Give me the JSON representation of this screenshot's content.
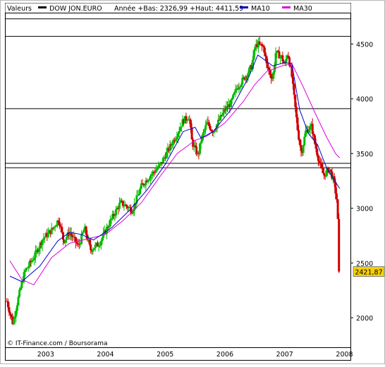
{
  "header": {
    "valeurs_label": "Valeurs",
    "series_label": "DOW JON.EURO",
    "stats_label": "Année +Bas: 2326,99 +Haut: 4411,59",
    "ma10_label": "MA10",
    "ma30_label": "MA30"
  },
  "footer": {
    "credit": "© IT-Finance.com / Boursorama"
  },
  "colors": {
    "up": "#00bb00",
    "down": "#cc0000",
    "ma10": "#0000cc",
    "ma30": "#e000e0",
    "grid": "#000000",
    "last_price_bg": "#f7d000"
  },
  "chart_data": {
    "type": "candlestick",
    "series_name": "DOW JON.EURO",
    "x_ticks": [
      "2003",
      "2004",
      "2005",
      "2006",
      "2007",
      "2008"
    ],
    "y_ticks": [
      "2000",
      "2500",
      "3000",
      "3500",
      "4000",
      "4500"
    ],
    "y_tick_values": [
      2000,
      2500,
      3000,
      3500,
      4000,
      4500
    ],
    "ylim": [
      1730,
      4780
    ],
    "xlim": [
      2002.83,
      2008.6
    ],
    "last_price": {
      "value": 2421.87,
      "label": "2421,87"
    },
    "horizontal_lines": [
      4570,
      3910,
      3410,
      3370,
      4730
    ],
    "anchors": [
      [
        2002.85,
        2150
      ],
      [
        2002.95,
        1950
      ],
      [
        2003.05,
        2200
      ],
      [
        2003.15,
        2420
      ],
      [
        2003.3,
        2550
      ],
      [
        2003.45,
        2720
      ],
      [
        2003.6,
        2800
      ],
      [
        2003.72,
        2900
      ],
      [
        2003.8,
        2700
      ],
      [
        2003.9,
        2780
      ],
      [
        2004.05,
        2650
      ],
      [
        2004.15,
        2820
      ],
      [
        2004.25,
        2620
      ],
      [
        2004.4,
        2680
      ],
      [
        2004.6,
        2900
      ],
      [
        2004.75,
        3050
      ],
      [
        2004.85,
        3020
      ],
      [
        2004.95,
        2980
      ],
      [
        2005.1,
        3200
      ],
      [
        2005.25,
        3300
      ],
      [
        2005.4,
        3380
      ],
      [
        2005.55,
        3530
      ],
      [
        2005.7,
        3680
      ],
      [
        2005.8,
        3800
      ],
      [
        2005.9,
        3840
      ],
      [
        2005.95,
        3600
      ],
      [
        2006.05,
        3480
      ],
      [
        2006.1,
        3620
      ],
      [
        2006.2,
        3780
      ],
      [
        2006.3,
        3700
      ],
      [
        2006.4,
        3800
      ],
      [
        2006.5,
        3900
      ],
      [
        2006.6,
        3960
      ],
      [
        2006.7,
        4100
      ],
      [
        2006.85,
        4210
      ],
      [
        2006.95,
        4300
      ],
      [
        2007.0,
        4470
      ],
      [
        2007.05,
        4500
      ],
      [
        2007.15,
        4470
      ],
      [
        2007.2,
        4300
      ],
      [
        2007.3,
        4180
      ],
      [
        2007.35,
        4420
      ],
      [
        2007.45,
        4380
      ],
      [
        2007.5,
        4300
      ],
      [
        2007.55,
        4430
      ],
      [
        2007.62,
        4200
      ],
      [
        2007.72,
        3700
      ],
      [
        2007.78,
        3500
      ],
      [
        2007.85,
        3700
      ],
      [
        2007.95,
        3750
      ],
      [
        2008.0,
        3600
      ],
      [
        2008.08,
        3420
      ],
      [
        2008.15,
        3300
      ],
      [
        2008.25,
        3360
      ],
      [
        2008.32,
        3250
      ],
      [
        2008.38,
        3050
      ],
      [
        2008.4,
        2650
      ],
      [
        2008.42,
        2421.87
      ]
    ],
    "anchor_note_removed": true,
    "ma10": [
      [
        2002.9,
        2380
      ],
      [
        2003.1,
        2330
      ],
      [
        2003.4,
        2470
      ],
      [
        2003.7,
        2700
      ],
      [
        2003.9,
        2780
      ],
      [
        2004.1,
        2760
      ],
      [
        2004.3,
        2710
      ],
      [
        2004.6,
        2820
      ],
      [
        2004.9,
        2980
      ],
      [
        2005.2,
        3170
      ],
      [
        2005.5,
        3400
      ],
      [
        2005.8,
        3700
      ],
      [
        2006.0,
        3740
      ],
      [
        2006.1,
        3640
      ],
      [
        2006.3,
        3700
      ],
      [
        2006.6,
        3900
      ],
      [
        2006.9,
        4200
      ],
      [
        2007.05,
        4400
      ],
      [
        2007.3,
        4300
      ],
      [
        2007.5,
        4330
      ],
      [
        2007.62,
        4320
      ],
      [
        2007.75,
        3900
      ],
      [
        2007.9,
        3680
      ],
      [
        2008.05,
        3580
      ],
      [
        2008.2,
        3370
      ],
      [
        2008.35,
        3240
      ],
      [
        2008.42,
        3180
      ]
    ],
    "ma30": [
      [
        2002.9,
        2520
      ],
      [
        2003.1,
        2350
      ],
      [
        2003.3,
        2300
      ],
      [
        2003.6,
        2550
      ],
      [
        2003.9,
        2680
      ],
      [
        2004.2,
        2720
      ],
      [
        2004.5,
        2760
      ],
      [
        2004.8,
        2890
      ],
      [
        2005.1,
        3050
      ],
      [
        2005.4,
        3280
      ],
      [
        2005.7,
        3500
      ],
      [
        2006.0,
        3620
      ],
      [
        2006.2,
        3660
      ],
      [
        2006.5,
        3780
      ],
      [
        2006.8,
        3970
      ],
      [
        2007.0,
        4130
      ],
      [
        2007.2,
        4250
      ],
      [
        2007.45,
        4300
      ],
      [
        2007.62,
        4320
      ],
      [
        2007.8,
        4120
      ],
      [
        2008.0,
        3880
      ],
      [
        2008.2,
        3650
      ],
      [
        2008.35,
        3500
      ],
      [
        2008.42,
        3460
      ]
    ]
  }
}
